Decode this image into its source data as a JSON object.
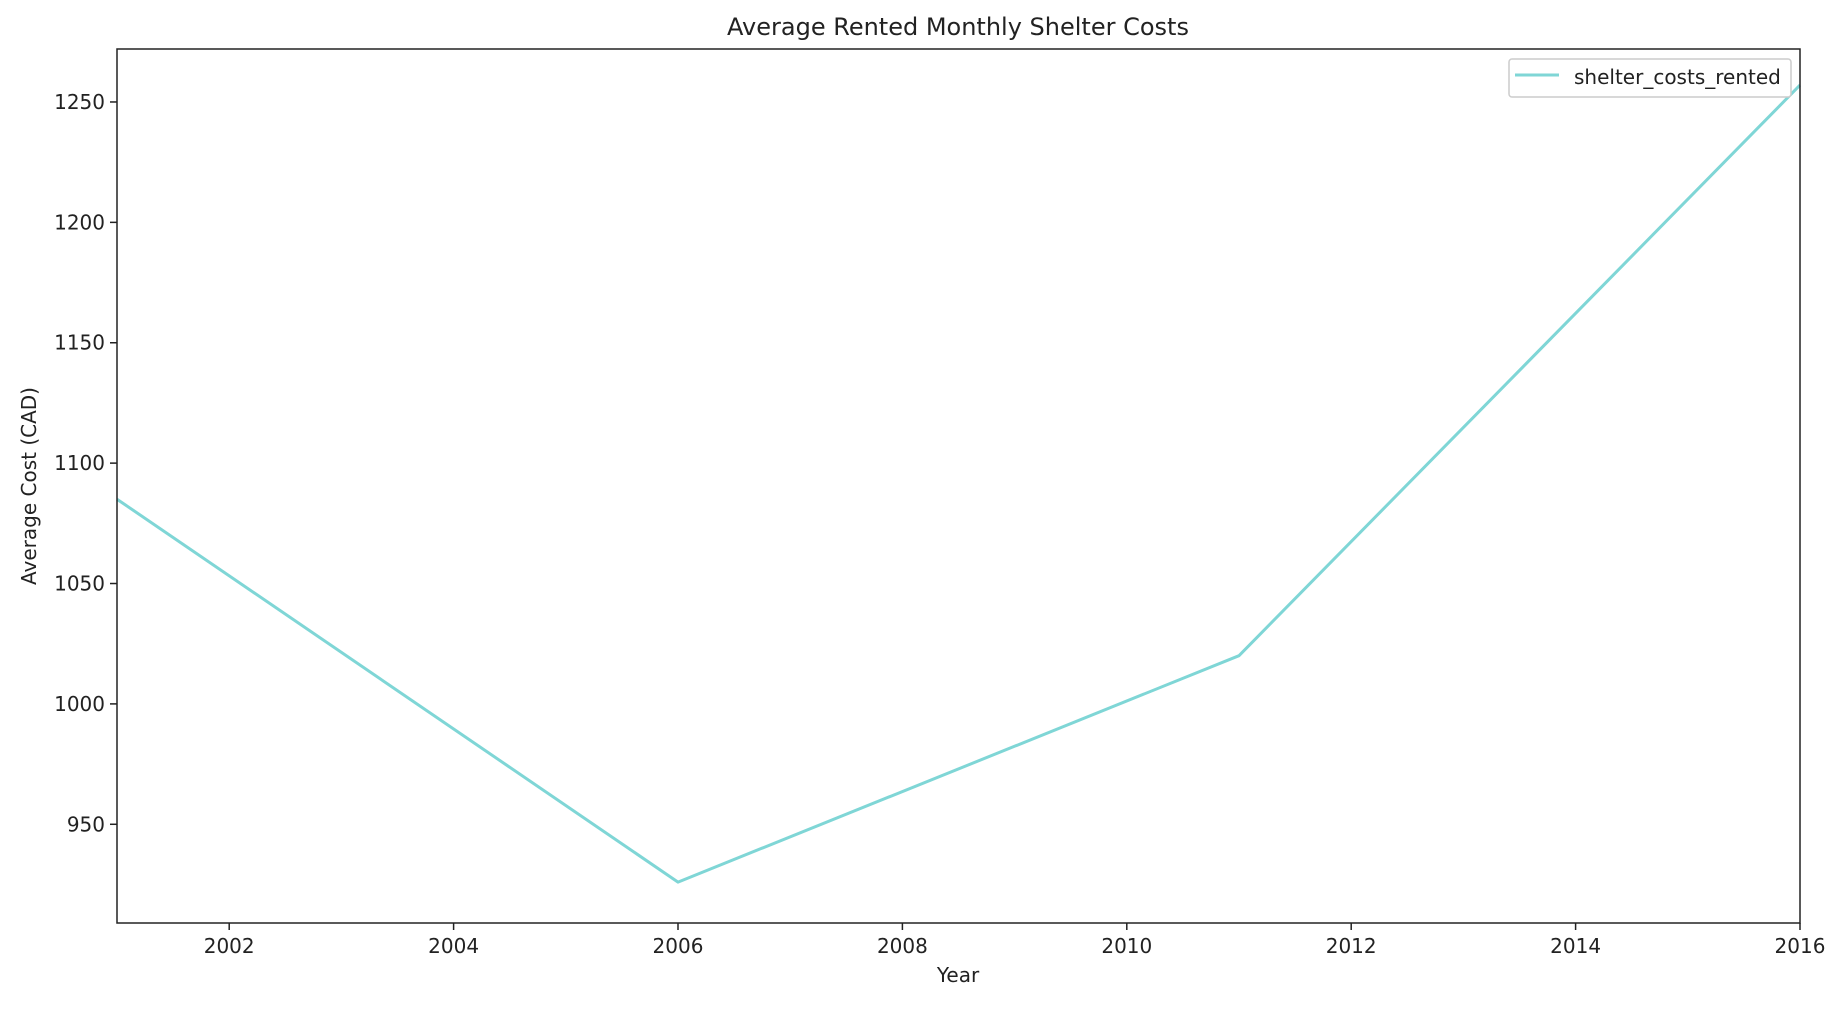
{
  "chart_data": {
    "type": "line",
    "title": "Average Rented Monthly Shelter Costs",
    "xlabel": "Year",
    "ylabel": "Average Cost (CAD)",
    "xlim": [
      2001,
      2016
    ],
    "ylim": [
      909,
      1272
    ],
    "xticks": [
      2002,
      2004,
      2006,
      2008,
      2010,
      2012,
      2014,
      2016
    ],
    "yticks": [
      950,
      1000,
      1050,
      1100,
      1150,
      1200,
      1250
    ],
    "grid": false,
    "legend_position": "top-right",
    "series": [
      {
        "name": "shelter_costs_rented",
        "color": "#7fd6d6",
        "x": [
          2001,
          2006,
          2011,
          2016
        ],
        "y": [
          1085,
          926,
          1020,
          1257
        ]
      }
    ]
  }
}
